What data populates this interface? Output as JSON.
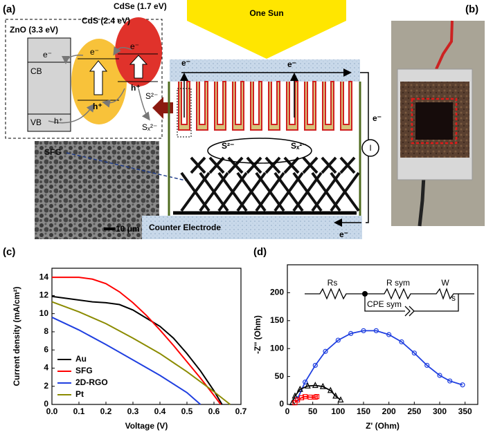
{
  "panels": {
    "a": "(a)",
    "b": "(b)",
    "c": "(c)",
    "d": "(d)"
  },
  "panel_a": {
    "zno": "ZnO (3.3 eV)",
    "cds": "CdS (2.4 eV)",
    "cdse": "CdSe (1.7 eV)",
    "e_znO": "e⁻",
    "cb": "CB",
    "vb": "VB",
    "h_zno": "h⁺",
    "e_cds": "e⁻",
    "h_cds": "h⁺",
    "e_cdse": "e⁻",
    "h_cdse": "h⁺",
    "s2": "S²⁻",
    "sx2": "Sₓ²⁻",
    "scale": "10 μm",
    "sfg": "SFG",
    "sun": "One Sun",
    "counter": "Counter Electrode",
    "s2_cell": "S²⁻",
    "sx2_cell": "Sₓ²⁻",
    "e1": "e⁻",
    "e2": "e⁻",
    "current": "I",
    "e3": "e⁻",
    "e4": "e⁻"
  },
  "circuit": {
    "rs": "Rs",
    "rsym": "R sym",
    "w": "W",
    "ws": "s",
    "cpe": "CPE sym"
  },
  "chart_data": [
    {
      "type": "line",
      "xlabel": "Voltage (V)",
      "ylabel": "Current density (mA/cm²)",
      "xlim": [
        0,
        0.7
      ],
      "ylim": [
        0,
        15
      ],
      "xticks": [
        {
          "value": 0,
          "label": "0.0"
        },
        0.1,
        0.2,
        0.3,
        0.4,
        0.5,
        0.6,
        0.7
      ],
      "yticks": [
        0,
        2,
        4,
        6,
        8,
        10,
        12,
        14
      ],
      "legend": "lower left",
      "series": [
        {
          "name": "Au",
          "color": "#000000",
          "x": [
            0,
            0.05,
            0.1,
            0.15,
            0.2,
            0.25,
            0.3,
            0.35,
            0.4,
            0.45,
            0.5,
            0.55,
            0.6,
            0.63
          ],
          "values": [
            11.9,
            11.7,
            11.5,
            11.3,
            11.2,
            11.0,
            10.4,
            9.5,
            8.6,
            7.3,
            5.6,
            3.7,
            1.5,
            0
          ]
        },
        {
          "name": "SFG",
          "color": "#ff0000",
          "x": [
            0,
            0.1,
            0.15,
            0.2,
            0.25,
            0.3,
            0.35,
            0.4,
            0.45,
            0.5,
            0.55,
            0.6,
            0.625
          ],
          "values": [
            14.0,
            14.0,
            13.8,
            13.3,
            12.4,
            11.2,
            9.8,
            8.2,
            6.5,
            4.7,
            2.9,
            1.0,
            0
          ]
        },
        {
          "name": "2D-RGO",
          "color": "#1f3fe0",
          "x": [
            0,
            0.1,
            0.2,
            0.3,
            0.4,
            0.5,
            0.55
          ],
          "values": [
            9.6,
            8.2,
            6.6,
            4.9,
            3.2,
            1.3,
            0
          ]
        },
        {
          "name": "Pt",
          "color": "#8b8b00",
          "x": [
            0,
            0.1,
            0.2,
            0.3,
            0.4,
            0.5,
            0.6,
            0.66
          ],
          "values": [
            11.3,
            10.2,
            8.9,
            7.3,
            5.6,
            3.6,
            1.4,
            0
          ]
        }
      ]
    },
    {
      "type": "scatter",
      "xlabel": "Z' (Ohm)",
      "ylabel": "-Z'' (Ohm)",
      "xlim": [
        0,
        375
      ],
      "ylim": [
        0,
        250
      ],
      "xticks": [
        0,
        50,
        100,
        150,
        200,
        250,
        300,
        350
      ],
      "yticks": [
        0,
        50,
        100,
        150,
        200
      ],
      "fit_line": true,
      "series": [
        {
          "color": "#1f3fe0",
          "marker": "circle",
          "x": [
            20,
            35,
            55,
            75,
            100,
            125,
            150,
            175,
            200,
            225,
            250,
            275,
            300,
            320,
            345
          ],
          "values": [
            10,
            40,
            70,
            95,
            115,
            127,
            132,
            132,
            125,
            112,
            92,
            70,
            52,
            42,
            35
          ]
        },
        {
          "color": "#000000",
          "marker": "triangle",
          "x": [
            10,
            15,
            25,
            40,
            55,
            70,
            85,
            95,
            105
          ],
          "values": [
            3,
            15,
            27,
            33,
            34,
            32,
            25,
            15,
            8
          ]
        },
        {
          "color": "#ff0000",
          "marker": "square",
          "x": [
            15,
            20,
            28,
            35,
            45,
            55,
            58
          ],
          "values": [
            3,
            8,
            12,
            14,
            13,
            13,
            14
          ]
        }
      ]
    }
  ]
}
